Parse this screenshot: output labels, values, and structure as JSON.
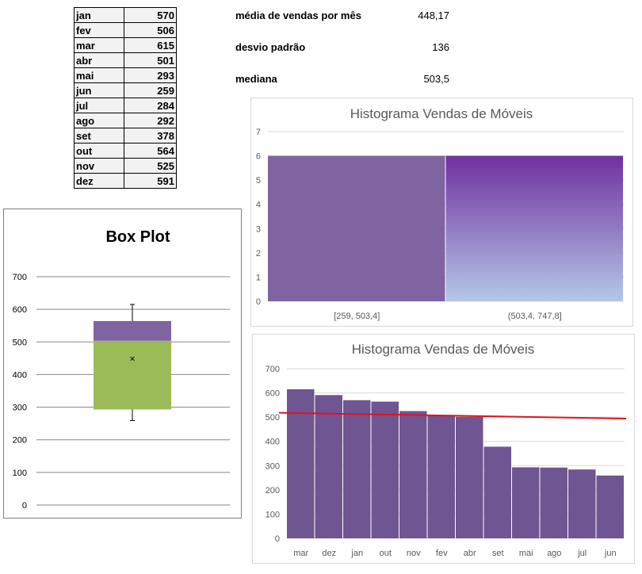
{
  "monthly_sales": [
    {
      "month": "jan",
      "value": "570"
    },
    {
      "month": "fev",
      "value": "506"
    },
    {
      "month": "mar",
      "value": "615"
    },
    {
      "month": "abr",
      "value": "501"
    },
    {
      "month": "mai",
      "value": "293"
    },
    {
      "month": "jun",
      "value": "259"
    },
    {
      "month": "jul",
      "value": "284"
    },
    {
      "month": "ago",
      "value": "292"
    },
    {
      "month": "set",
      "value": "378"
    },
    {
      "month": "out",
      "value": "564"
    },
    {
      "month": "nov",
      "value": "525"
    },
    {
      "month": "dez",
      "value": "591"
    }
  ],
  "stats": {
    "mean_label": "média de vendas por mês",
    "mean_value": "448,17",
    "std_label": "desvio padrão",
    "std_value": "136",
    "median_label": "mediana",
    "median_value": "503,5"
  },
  "chart_data": [
    {
      "type": "box",
      "title": "Box Plot",
      "ylim": [
        0,
        700
      ],
      "yticks": [
        0,
        100,
        200,
        300,
        400,
        500,
        600,
        700
      ],
      "min": 259,
      "q1": 293,
      "median": 503.5,
      "q3": 564,
      "max": 615,
      "mean": 448.17,
      "colors": {
        "upper_box": "#8064a2",
        "lower_box": "#9bbb59"
      }
    },
    {
      "type": "bar",
      "title": "Histograma Vendas de Móveis",
      "categories": [
        "[259, 503,4]",
        "(503,4, 747,8]"
      ],
      "values": [
        6,
        6
      ],
      "ylim": [
        0,
        7
      ],
      "yticks": [
        0,
        1,
        2,
        3,
        4,
        5,
        6,
        7
      ],
      "colors": {
        "bin1": "#8064a2",
        "bin2_top": "#7030a0",
        "bin2_bottom": "#b4c7e7"
      }
    },
    {
      "type": "bar",
      "title": "Histograma Vendas de Móveis",
      "categories": [
        "mar",
        "dez",
        "jan",
        "out",
        "nov",
        "fev",
        "abr",
        "set",
        "mai",
        "ago",
        "jul",
        "jun"
      ],
      "values": [
        615,
        591,
        570,
        564,
        525,
        506,
        501,
        378,
        293,
        292,
        284,
        259
      ],
      "ylim": [
        0,
        700
      ],
      "yticks": [
        0,
        100,
        200,
        300,
        400,
        500,
        600,
        700
      ],
      "trendline": {
        "start": 518,
        "end": 494
      },
      "colors": {
        "bar": "#6f5591",
        "trend": "#e3121b"
      }
    }
  ]
}
